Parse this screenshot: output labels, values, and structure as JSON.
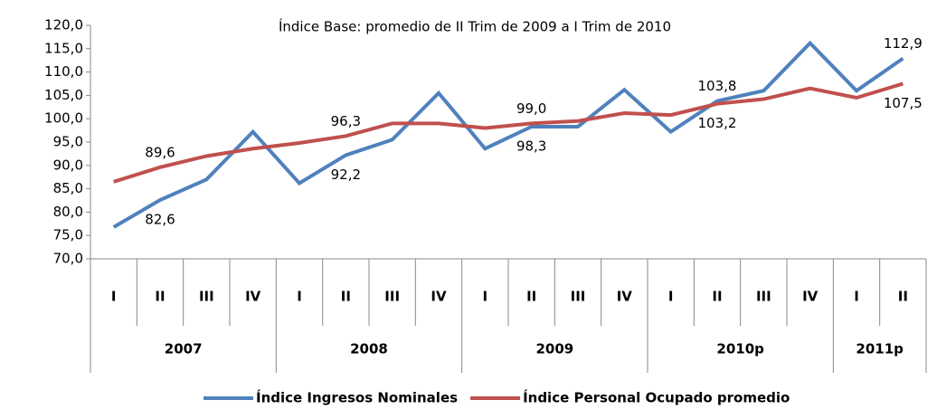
{
  "chart_data": {
    "type": "line",
    "title": "Índice Base: promedio de II Trim de 2009 a I Trim de 2010",
    "categories": [
      "I",
      "II",
      "III",
      "IV",
      "I",
      "II",
      "III",
      "IV",
      "I",
      "II",
      "III",
      "IV",
      "I",
      "II",
      "III",
      "IV",
      "I",
      "II"
    ],
    "groups": [
      {
        "label": "2007",
        "count": 4
      },
      {
        "label": "2008",
        "count": 4
      },
      {
        "label": "2009",
        "count": 4
      },
      {
        "label": "2010p",
        "count": 4
      },
      {
        "label": "2011p",
        "count": 2
      }
    ],
    "series": [
      {
        "name": "Índice Ingresos Nominales",
        "color": "#4f81bd",
        "values": [
          76.8,
          82.6,
          87.0,
          97.2,
          86.2,
          92.2,
          95.5,
          105.5,
          93.6,
          98.3,
          98.3,
          106.2,
          97.2,
          103.8,
          106.0,
          116.2,
          106.0,
          112.9
        ],
        "value_labels": [
          null,
          "82,6",
          null,
          null,
          null,
          "92,2",
          null,
          null,
          null,
          "98,3",
          null,
          null,
          null,
          "103,8",
          null,
          null,
          null,
          "112,9"
        ]
      },
      {
        "name": "Índice Personal Ocupado promedio",
        "color": "#c0504d",
        "values": [
          86.5,
          89.6,
          92.0,
          93.6,
          94.8,
          96.3,
          99.0,
          99.0,
          98.0,
          99.0,
          99.5,
          101.2,
          100.8,
          103.2,
          104.2,
          106.5,
          104.5,
          107.5
        ],
        "value_labels": [
          null,
          "89,6",
          null,
          null,
          null,
          "96,3",
          null,
          null,
          null,
          "99,0",
          null,
          null,
          null,
          "103,2",
          null,
          null,
          null,
          "107,5"
        ]
      }
    ],
    "ylim": [
      70,
      120
    ],
    "yticks": [
      {
        "value": 70,
        "label": "70,0"
      },
      {
        "value": 75,
        "label": "75,0"
      },
      {
        "value": 80,
        "label": "80,0"
      },
      {
        "value": 85,
        "label": "85,0"
      },
      {
        "value": 90,
        "label": "90,0"
      },
      {
        "value": 95,
        "label": "95,0"
      },
      {
        "value": 100,
        "label": "100,0"
      },
      {
        "value": 105,
        "label": "105,0"
      },
      {
        "value": 110,
        "label": "110,0"
      },
      {
        "value": 115,
        "label": "115,0"
      },
      {
        "value": 120,
        "label": "120,0"
      }
    ],
    "legend": "bottom"
  }
}
